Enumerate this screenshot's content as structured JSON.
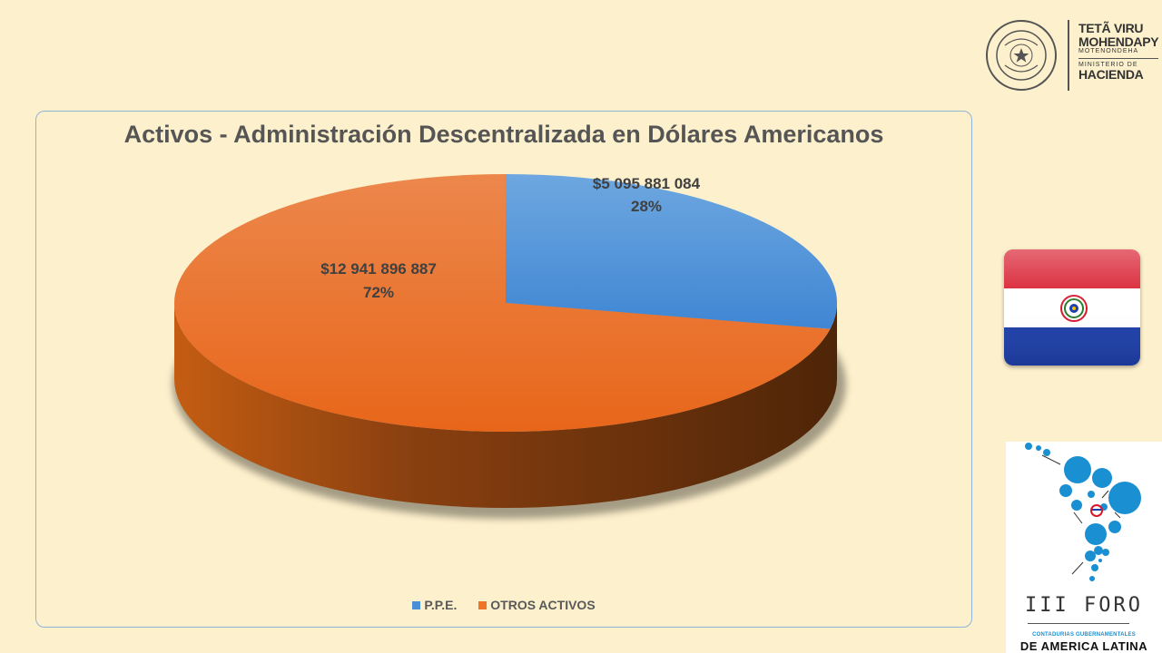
{
  "chart_data": {
    "type": "pie",
    "title": "Activos - Administración Descentralizada en Dólares Americanos",
    "categories": [
      "P.P.E.",
      "OTROS ACTIVOS"
    ],
    "values": [
      5095881084,
      12941896887
    ],
    "value_labels": [
      "$5 095 881 084",
      "$12 941 896 887"
    ],
    "percent_labels": [
      "28%",
      "72%"
    ],
    "percentages": [
      28,
      72
    ],
    "colors": [
      "#4a8fd6",
      "#ef7428"
    ],
    "legend_position": "bottom",
    "style": "3d"
  },
  "logo": {
    "line1": "TETÃ VIRU",
    "line2": "MOHENDAPY",
    "line3": "MOTENONDEHA",
    "line4": "MINISTERIO DE",
    "line5": "HACIENDA",
    "seal_text": "REPUBLICA DEL PARAGUAY"
  },
  "foro": {
    "title": "III FORO",
    "subtitle": "CONTADURIAS GUBERNAMENTALES",
    "main": "DE AMERICA LATINA"
  }
}
